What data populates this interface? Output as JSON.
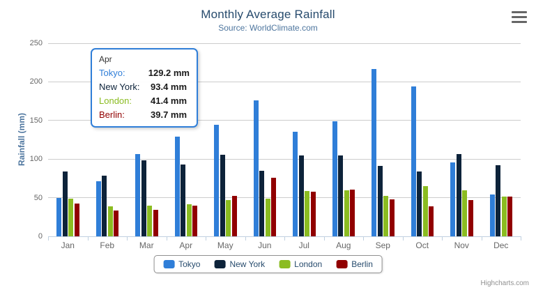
{
  "title": "Monthly Average Rainfall",
  "subtitle": "Source: WorldClimate.com",
  "credits": "Highcharts.com",
  "context_menu_icon": "hamburger-menu",
  "chart_data": {
    "type": "bar",
    "title": "Monthly Average Rainfall",
    "subtitle": "Source: WorldClimate.com",
    "xlabel": "",
    "ylabel": "Rainfall (mm)",
    "ylim": [
      0,
      250
    ],
    "yticks": [
      0,
      50,
      100,
      150,
      200,
      250
    ],
    "grid": true,
    "legend_position": "bottom",
    "categories": [
      "Jan",
      "Feb",
      "Mar",
      "Apr",
      "May",
      "Jun",
      "Jul",
      "Aug",
      "Sep",
      "Oct",
      "Nov",
      "Dec"
    ],
    "series": [
      {
        "name": "Tokyo",
        "color": "#2f7ed8",
        "values": [
          49.9,
          71.5,
          106.4,
          129.2,
          144.0,
          176.0,
          135.6,
          148.5,
          216.4,
          194.1,
          95.6,
          54.4
        ]
      },
      {
        "name": "New York",
        "color": "#0d233a",
        "values": [
          83.6,
          78.8,
          98.5,
          93.4,
          106.0,
          84.5,
          105.0,
          104.3,
          91.2,
          83.5,
          106.6,
          92.3
        ]
      },
      {
        "name": "London",
        "color": "#8bbc21",
        "values": [
          48.9,
          38.8,
          39.3,
          41.4,
          47.0,
          48.3,
          59.0,
          59.6,
          52.4,
          65.2,
          59.3,
          51.2
        ]
      },
      {
        "name": "Berlin",
        "color": "#910000",
        "values": [
          42.4,
          33.2,
          34.5,
          39.7,
          52.6,
          75.5,
          57.4,
          60.4,
          47.6,
          39.1,
          46.8,
          51.1
        ]
      }
    ]
  },
  "tooltip": {
    "header": "Apr",
    "rows": [
      {
        "label": "Tokyo:",
        "value": "129.2 mm",
        "color": "#2f7ed8"
      },
      {
        "label": "New York:",
        "value": "93.4 mm",
        "color": "#0d233a"
      },
      {
        "label": "London:",
        "value": "41.4 mm",
        "color": "#8bbc21"
      },
      {
        "label": "Berlin:",
        "value": "39.7 mm",
        "color": "#910000"
      }
    ]
  },
  "legend": {
    "items": [
      {
        "label": "Tokyo",
        "color": "#2f7ed8"
      },
      {
        "label": "New York",
        "color": "#0d233a"
      },
      {
        "label": "London",
        "color": "#8bbc21"
      },
      {
        "label": "Berlin",
        "color": "#910000"
      }
    ]
  }
}
